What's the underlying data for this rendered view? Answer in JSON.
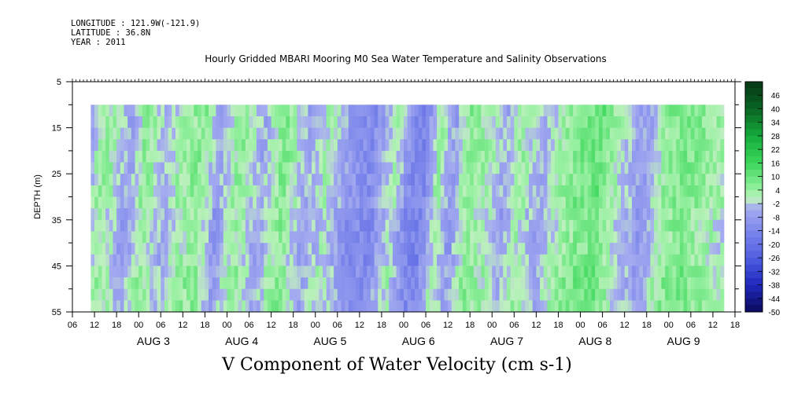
{
  "meta_lines": {
    "longitude": "LONGITUDE : 121.9W(-121.9)",
    "latitude": "LATITUDE : 36.8N",
    "year": "YEAR : 2011"
  },
  "chart_data": {
    "type": "heatmap",
    "title": "Hourly Gridded MBARI Mooring M0 Sea Water Temperature and Salinity Observations",
    "bottom_title": "V Component of Water Velocity (cm s-1)",
    "ylabel": "DEPTH (m)",
    "ylim": [
      55,
      5
    ],
    "y_ticks": [
      5,
      15,
      25,
      35,
      45,
      55
    ],
    "data_depth_range": [
      10,
      55
    ],
    "x_hour_tick_labels": [
      "00",
      "06",
      "12",
      "18"
    ],
    "x_day_labels": [
      "AUG  3",
      "AUG  4",
      "AUG  5",
      "AUG  6",
      "AUG  7",
      "AUG  8",
      "AUG  9"
    ],
    "x_day_start_hours": [
      0,
      24,
      48,
      72,
      96,
      120,
      144
    ],
    "x_range_hours": [
      -18,
      162
    ],
    "data_time_range_hours": [
      -13,
      159
    ],
    "colorbar_labels": [
      "46",
      "40",
      "34",
      "28",
      "22",
      "16",
      "10",
      "4",
      "-2",
      "-8",
      "-14",
      "-20",
      "-26",
      "-32",
      "-38",
      "-44",
      "-50"
    ],
    "colorbar_range": [
      -50,
      52
    ],
    "colors": {
      "strong_negative": "#0a0a5a",
      "negative": "#9fa6f0",
      "near_zero": "#b8f0b8",
      "positive": "#60e080",
      "strong_positive": "#0a4a1a"
    },
    "column_pattern_note": "",
    "temporal_profile": [
      {
        "t": -13,
        "v": -6
      },
      {
        "t": -10,
        "v": 4
      },
      {
        "t": -6,
        "v": 2
      },
      {
        "t": -2,
        "v": -8
      },
      {
        "t": 2,
        "v": 6
      },
      {
        "t": 8,
        "v": -4
      },
      {
        "t": 12,
        "v": 4
      },
      {
        "t": 18,
        "v": 6
      },
      {
        "t": 22,
        "v": -8
      },
      {
        "t": 28,
        "v": 6
      },
      {
        "t": 34,
        "v": -6
      },
      {
        "t": 40,
        "v": 8
      },
      {
        "t": 46,
        "v": -6
      },
      {
        "t": 52,
        "v": 2
      },
      {
        "t": 58,
        "v": -10
      },
      {
        "t": 64,
        "v": -12
      },
      {
        "t": 70,
        "v": 2
      },
      {
        "t": 74,
        "v": -12
      },
      {
        "t": 78,
        "v": -14
      },
      {
        "t": 82,
        "v": 4
      },
      {
        "t": 86,
        "v": -8
      },
      {
        "t": 90,
        "v": 6
      },
      {
        "t": 96,
        "v": 2
      },
      {
        "t": 100,
        "v": -6
      },
      {
        "t": 104,
        "v": 4
      },
      {
        "t": 110,
        "v": -6
      },
      {
        "t": 114,
        "v": 2
      },
      {
        "t": 120,
        "v": 8
      },
      {
        "t": 126,
        "v": 10
      },
      {
        "t": 132,
        "v": -2
      },
      {
        "t": 138,
        "v": -8
      },
      {
        "t": 144,
        "v": 6
      },
      {
        "t": 150,
        "v": 8
      },
      {
        "t": 156,
        "v": 4
      },
      {
        "t": 159,
        "v": 2
      }
    ]
  }
}
